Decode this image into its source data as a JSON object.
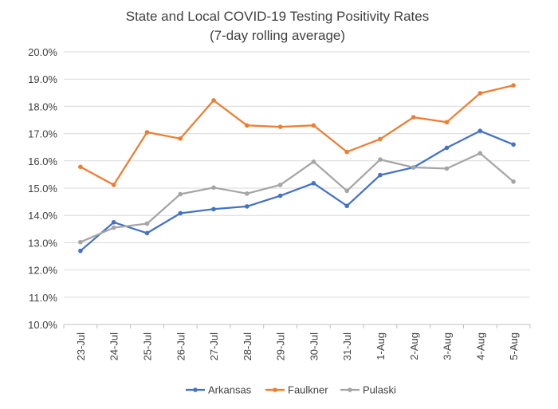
{
  "chart_data": {
    "type": "line",
    "title": "State and Local COVID-19 Testing Positivity Rates",
    "subtitle": "(7-day rolling average)",
    "xlabel": "",
    "ylabel": "",
    "categories": [
      "23-Jul",
      "24-Jul",
      "25-Jul",
      "26-Jul",
      "27-Jul",
      "28-Jul",
      "29-Jul",
      "30-Jul",
      "31-Jul",
      "1-Aug",
      "2-Aug",
      "3-Aug",
      "4-Aug",
      "5-Aug"
    ],
    "ylim": [
      10.0,
      20.0
    ],
    "yticks": [
      10.0,
      11.0,
      12.0,
      13.0,
      14.0,
      15.0,
      16.0,
      17.0,
      18.0,
      19.0,
      20.0
    ],
    "ytick_labels": [
      "10.0%",
      "11.0%",
      "12.0%",
      "13.0%",
      "14.0%",
      "15.0%",
      "16.0%",
      "17.0%",
      "18.0%",
      "19.0%",
      "20.0%"
    ],
    "grid": true,
    "legend_position": "bottom",
    "series": [
      {
        "name": "Arkansas",
        "color": "#4472C4",
        "values": [
          12.7,
          13.75,
          13.35,
          14.08,
          14.23,
          14.33,
          14.72,
          15.18,
          14.35,
          15.48,
          15.76,
          16.48,
          17.1,
          16.6
        ]
      },
      {
        "name": "Faulkner",
        "color": "#ED7D31",
        "values": [
          15.78,
          15.12,
          17.05,
          16.82,
          18.22,
          17.3,
          17.25,
          17.3,
          16.33,
          16.8,
          17.6,
          17.42,
          18.48,
          18.77
        ]
      },
      {
        "name": "Pulaski",
        "color": "#A5A5A5",
        "values": [
          13.02,
          13.55,
          13.7,
          14.78,
          15.02,
          14.8,
          15.12,
          15.97,
          14.9,
          16.05,
          15.76,
          15.72,
          16.28,
          15.24
        ]
      }
    ]
  }
}
